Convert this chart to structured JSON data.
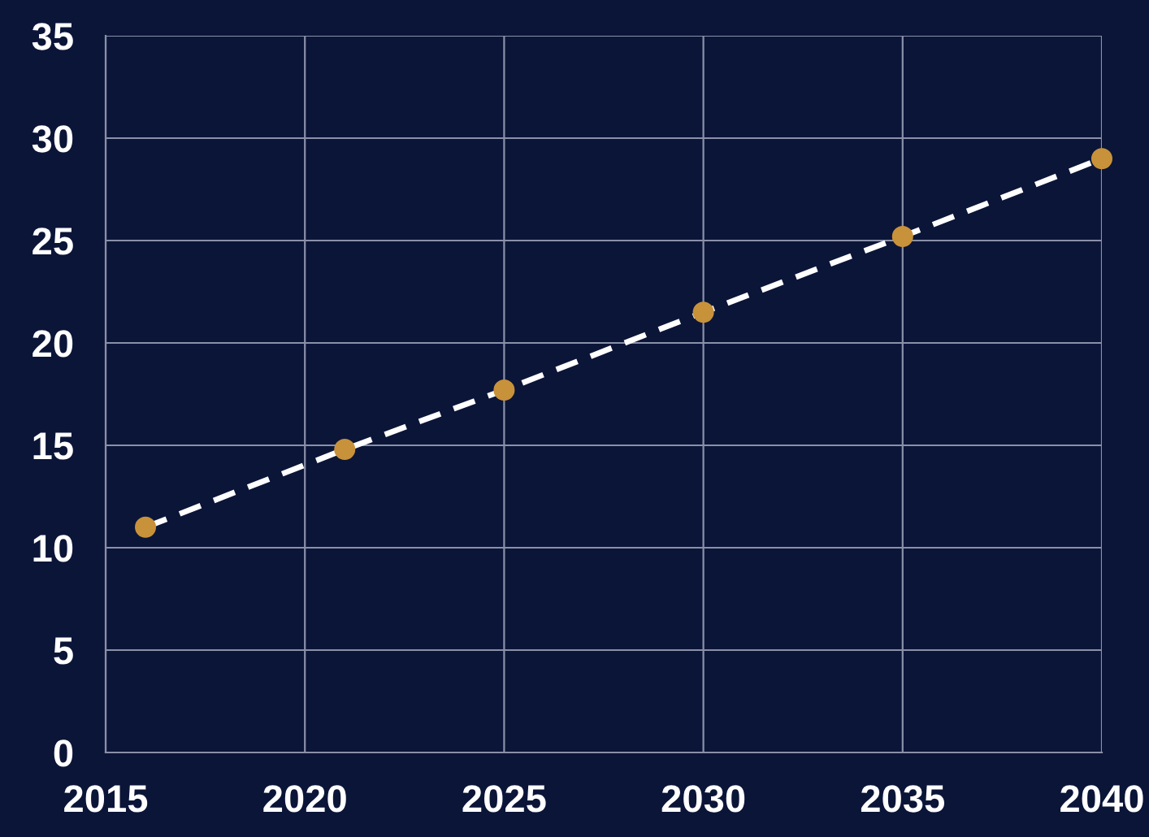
{
  "chart_data": {
    "type": "line",
    "x": [
      2016,
      2021,
      2025,
      2030,
      2035,
      2040
    ],
    "series": [
      {
        "color": "#ffffff",
        "line_style": "dashed",
        "values": [
          11.0,
          14.8,
          17.7,
          21.5,
          25.2,
          29.0
        ]
      },
      {
        "type": "scatter",
        "color": "#c8923a",
        "marker": "circle",
        "values": [
          11.0,
          14.8,
          17.7,
          21.5,
          25.2,
          29.0
        ]
      }
    ],
    "xlim": [
      2015,
      2040
    ],
    "xticks": [
      2015,
      2020,
      2025,
      2030,
      2035,
      2040
    ],
    "ylim": [
      0,
      35
    ],
    "yticks": [
      0,
      5,
      10,
      15,
      20,
      25,
      30,
      35
    ],
    "grid": true
  }
}
